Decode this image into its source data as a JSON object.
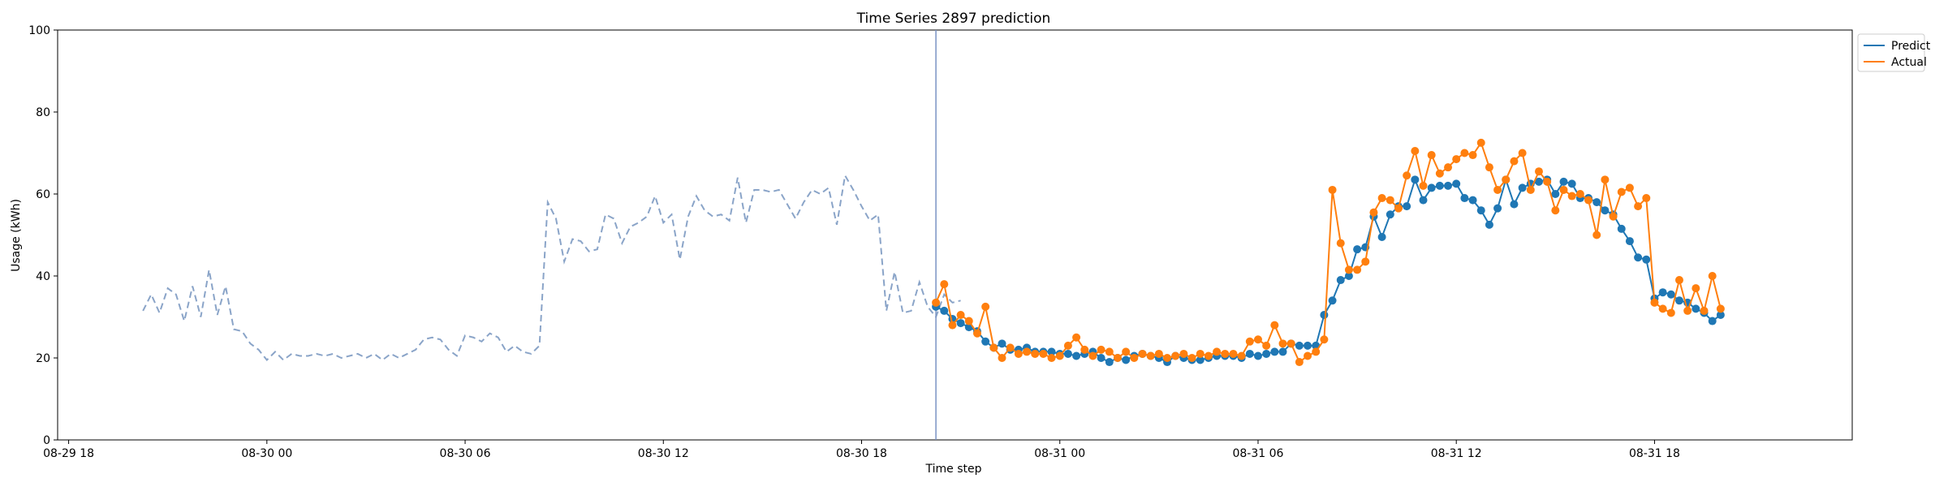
{
  "chart_data": {
    "type": "line",
    "title": "Time Series 2897 prediction",
    "xlabel": "Time step",
    "ylabel": "Usage (kWh)",
    "ylim": [
      0,
      100
    ],
    "yticks": [
      0,
      20,
      40,
      60,
      80,
      100
    ],
    "xlim": [
      "2023-08-29 17:40",
      "2023-08-31 23:59"
    ],
    "xticks": [
      {
        "t": "2023-08-29 18:00",
        "label": "08-29 18"
      },
      {
        "t": "2023-08-30 00:00",
        "label": "08-30 00"
      },
      {
        "t": "2023-08-30 06:00",
        "label": "08-30 06"
      },
      {
        "t": "2023-08-30 12:00",
        "label": "08-30 12"
      },
      {
        "t": "2023-08-30 18:00",
        "label": "08-30 18"
      },
      {
        "t": "2023-08-31 00:00",
        "label": "08-31 00"
      },
      {
        "t": "2023-08-31 06:00",
        "label": "08-31 06"
      },
      {
        "t": "2023-08-31 12:00",
        "label": "08-31 12"
      },
      {
        "t": "2023-08-31 18:00",
        "label": "08-31 18"
      }
    ],
    "grid": false,
    "legend_position": "outside-top-right",
    "split_time": "2023-08-30 20:15",
    "split_line_color": "#7a93c4",
    "history": {
      "color": "#8aa4c8",
      "style": "dashed",
      "start": "2023-08-29 20:15",
      "step_minutes": 15,
      "values": [
        31.5,
        35.5,
        31,
        37,
        35.5,
        29,
        37.5,
        30,
        41.5,
        30.5,
        37.5,
        27,
        26.5,
        23.5,
        22,
        19.5,
        21.5,
        19.5,
        21,
        20.5,
        20.5,
        21,
        20.5,
        21,
        20,
        20.5,
        21,
        20,
        21,
        19.5,
        21,
        20,
        21,
        22,
        24.5,
        25,
        24.5,
        22,
        20.5,
        25.5,
        25,
        24,
        26,
        25,
        21.5,
        23,
        21.5,
        21,
        23,
        58,
        54,
        43.5,
        49,
        48.5,
        46,
        46.5,
        55,
        54,
        48,
        52,
        53,
        54.5,
        59.5,
        53,
        55,
        44,
        54.5,
        59.5,
        56,
        54.5,
        55,
        53.5,
        64,
        53,
        61,
        61,
        60.5,
        61,
        57.5,
        54,
        58,
        61,
        60,
        61.5,
        52.5,
        64.5,
        61,
        57,
        53.5,
        55,
        31.5,
        41,
        31,
        31.5,
        38.5,
        32.5,
        30,
        35.5,
        33.5,
        34
      ]
    },
    "series": [
      {
        "name": "Predict",
        "color": "#1f77b4",
        "start": "2023-08-30 20:15",
        "step_minutes": 15,
        "values": [
          32.5,
          31.5,
          29.5,
          28.5,
          27.5,
          26.5,
          24,
          22.5,
          23.5,
          22,
          22,
          22.5,
          21.5,
          21.5,
          21.5,
          21,
          21,
          20.5,
          21,
          21.5,
          20,
          19,
          20,
          19.5,
          20.5,
          21,
          20.5,
          20,
          19,
          20.5,
          20,
          19.5,
          19.5,
          20,
          20.5,
          20.5,
          20.5,
          20,
          21,
          20.5,
          21,
          21.5,
          21.5,
          23.5,
          23,
          23,
          23,
          30.5,
          34,
          39,
          40,
          46.5,
          47,
          54.5,
          49.5,
          55,
          57,
          57,
          63.5,
          58.5,
          61.5,
          62,
          62,
          62.5,
          59,
          58.5,
          56,
          52.5,
          56.5,
          63.5,
          57.5,
          61.5,
          62.5,
          63,
          63.5,
          60,
          63,
          62.5,
          59,
          59,
          58,
          56,
          55,
          51.5,
          48.5,
          44.5,
          44,
          34.5,
          36,
          35.5,
          34,
          33.5,
          32,
          31,
          29,
          30.5
        ]
      },
      {
        "name": "Actual",
        "color": "#ff7f0e",
        "start": "2023-08-30 20:15",
        "step_minutes": 15,
        "values": [
          33.5,
          38,
          28,
          30.5,
          29,
          26,
          32.5,
          22.5,
          20,
          22.5,
          21,
          21.5,
          21,
          21,
          20,
          20.5,
          23,
          25,
          22,
          20.5,
          22,
          21.5,
          20,
          21.5,
          20,
          21,
          20.5,
          21,
          20,
          20.5,
          21,
          20,
          21,
          20.5,
          21.5,
          21,
          21,
          20.5,
          24,
          24.5,
          23,
          28,
          23.5,
          23.5,
          19,
          20.5,
          21.5,
          24.5,
          61,
          48,
          41.5,
          41.5,
          43.5,
          55.5,
          59,
          58.5,
          56.5,
          64.5,
          70.5,
          62,
          69.5,
          65,
          66.5,
          68.5,
          70,
          69.5,
          72.5,
          66.5,
          61,
          63.5,
          68,
          70,
          61,
          65.5,
          63,
          56,
          61,
          59.5,
          60,
          58.5,
          50,
          63.5,
          54.5,
          60.5,
          61.5,
          57,
          59,
          33.5,
          32,
          31,
          39,
          31.5,
          37,
          31.5,
          40,
          32
        ]
      }
    ]
  }
}
